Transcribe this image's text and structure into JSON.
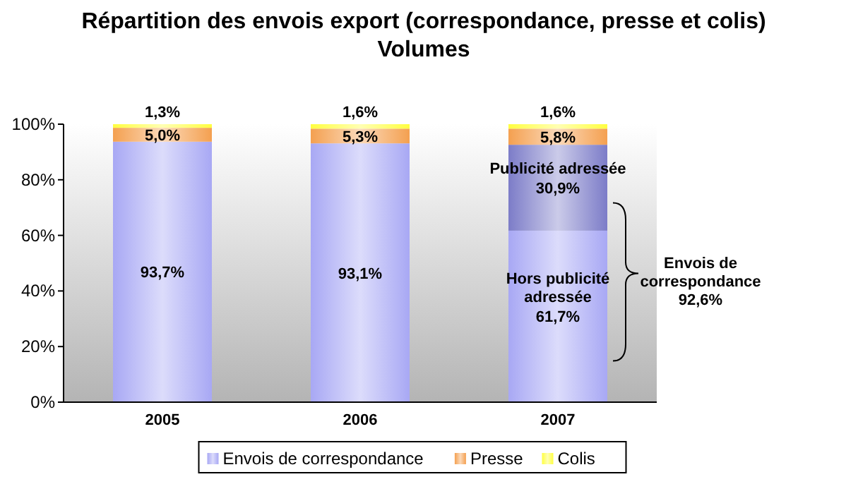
{
  "chart_data": {
    "type": "bar",
    "title": "Répartition des envois export (correspondance, presse et colis)\nVolumes",
    "categories": [
      "2005",
      "2006",
      "2007"
    ],
    "stacked": true,
    "series": [
      {
        "name": "Envois de correspondance",
        "color": "#a8a8f4",
        "values": [
          93.7,
          93.1,
          61.7
        ],
        "value_labels": [
          "93,7%",
          "93,1%",
          "61,7%"
        ]
      },
      {
        "color": "#7c7cc8",
        "values": [
          null,
          null,
          30.9
        ],
        "value_labels": [
          null,
          null,
          "30,9%"
        ]
      },
      {
        "name": "Presse",
        "color": "#f4a050",
        "values": [
          5.0,
          5.3,
          5.8
        ],
        "value_labels": [
          "5,0%",
          "5,3%",
          "5,8%"
        ]
      },
      {
        "name": "Colis",
        "color": "#ffff40",
        "values": [
          1.3,
          1.6,
          1.6
        ],
        "value_labels": [
          "1,3%",
          "1,6%",
          "1,6%"
        ]
      }
    ],
    "ylim": [
      0,
      100
    ],
    "yticks": [
      {
        "value": 0,
        "label": "0%"
      },
      {
        "value": 20,
        "label": "20%"
      },
      {
        "value": 40,
        "label": "40%"
      },
      {
        "value": 60,
        "label": "60%"
      },
      {
        "value": 80,
        "label": "80%"
      },
      {
        "value": 100,
        "label": "100%"
      }
    ],
    "annotations": [
      "Publicité adressée",
      "Hors publicité\nadressée",
      "Envois de\ncorrespondance\n92,6%"
    ],
    "legend": "bottom"
  }
}
